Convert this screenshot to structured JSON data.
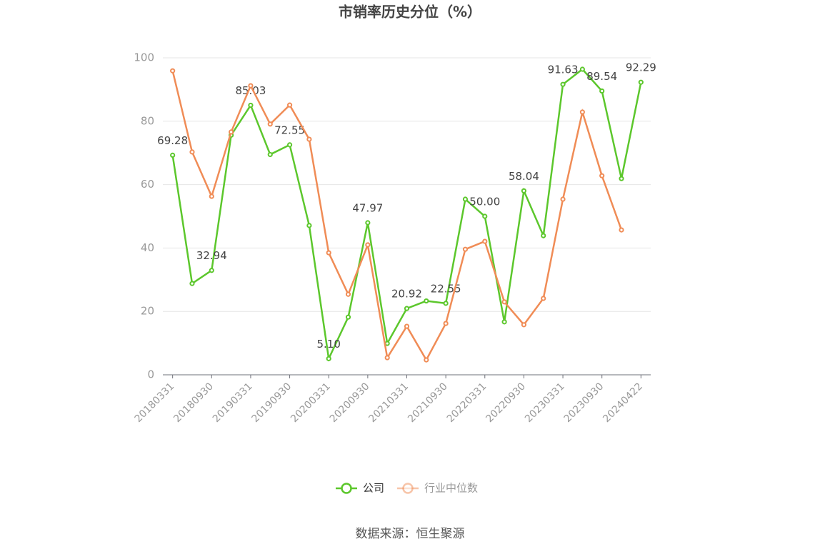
{
  "chart_data": {
    "type": "line",
    "title": "市销率历史分位（%）",
    "categories": [
      "20180331",
      null,
      "20180930",
      null,
      "20190331",
      null,
      "20190930",
      null,
      "20200331",
      null,
      "20200930",
      null,
      "20210331",
      null,
      "20210930",
      null,
      "20220331",
      null,
      "20220930",
      null,
      "20230331",
      null,
      "20230930",
      null,
      "20240422"
    ],
    "series": [
      {
        "name": "公司",
        "color": "#5cc72c",
        "values": [
          69.28,
          28.8,
          32.94,
          75.6,
          85.03,
          69.5,
          72.55,
          47.1,
          5.1,
          18.2,
          47.97,
          9.9,
          20.92,
          23.3,
          22.55,
          55.4,
          50.0,
          16.7,
          58.04,
          43.9,
          91.63,
          96.4,
          89.54,
          61.9,
          92.29
        ],
        "value_labels": [
          "69.28",
          null,
          "32.94",
          null,
          "85.03",
          null,
          "72.55",
          null,
          "5.10",
          null,
          "47.97",
          null,
          "20.92",
          null,
          "22.55",
          null,
          "50.00",
          null,
          "58.04",
          null,
          "91.63",
          null,
          "89.54",
          null,
          "92.29"
        ]
      },
      {
        "name": "行业中位数",
        "color": "#f08c56",
        "values": [
          95.9,
          70.3,
          56.3,
          76.6,
          91.2,
          79.1,
          85.1,
          74.3,
          38.5,
          25.4,
          41.0,
          5.4,
          15.3,
          4.7,
          16.2,
          39.6,
          42.1,
          23.0,
          15.8,
          24.1,
          55.4,
          82.9,
          62.8,
          45.7,
          null
        ]
      }
    ],
    "ylim": [
      0,
      100
    ],
    "yticks": [
      0,
      20,
      40,
      60,
      80,
      100
    ],
    "grid": true,
    "legend": "bottom",
    "source": "数据来源：恒生聚源"
  }
}
